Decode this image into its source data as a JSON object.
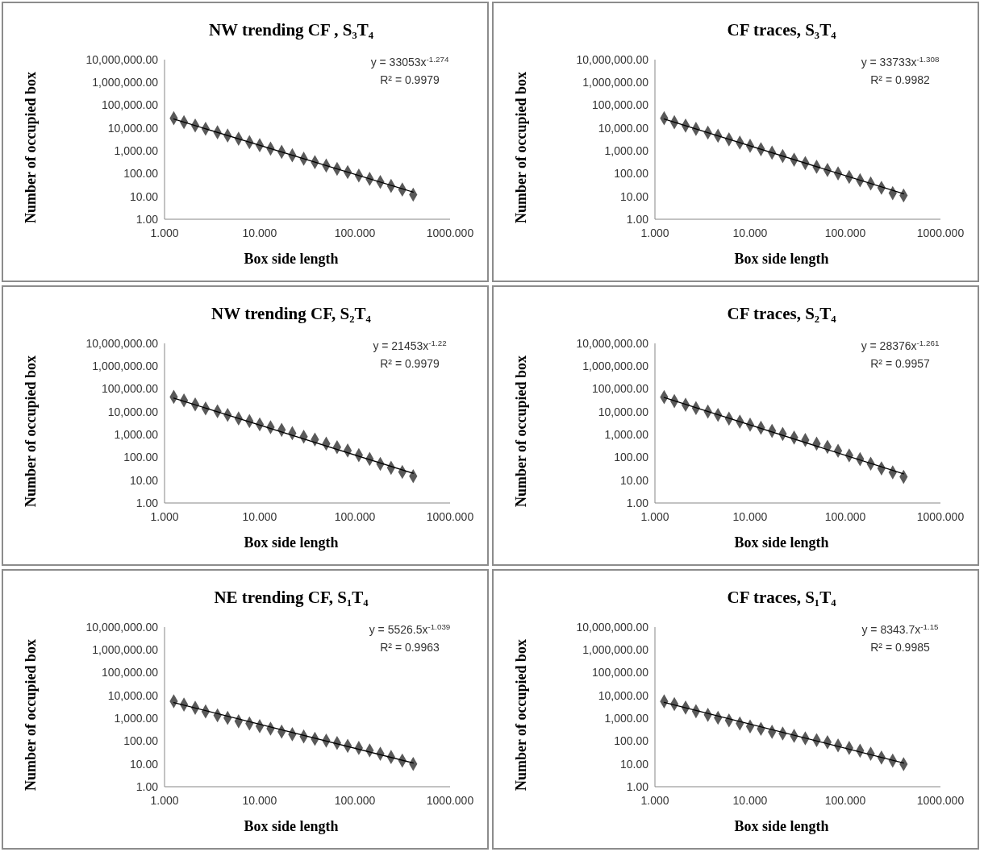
{
  "chart_data": [
    {
      "type": "scatter",
      "title": "NW trending CF , S₃T₄",
      "xlabel": "Box side length",
      "ylabel": "Number of occupied box",
      "log": "xy",
      "xlim": [
        1,
        1000
      ],
      "ylim": [
        1,
        10000000
      ],
      "xticks": [
        {
          "value": 1,
          "label": "1.000"
        },
        {
          "value": 10,
          "label": "10.000"
        },
        {
          "value": 100,
          "label": "100.000"
        },
        {
          "value": 1000,
          "label": "1000.000"
        }
      ],
      "yticks": [
        {
          "value": 1,
          "label": "1.00"
        },
        {
          "value": 10,
          "label": "10.00"
        },
        {
          "value": 100,
          "label": "100.00"
        },
        {
          "value": 1000,
          "label": "1,000.00"
        },
        {
          "value": 10000,
          "label": "10,000.00"
        },
        {
          "value": 100000,
          "label": "100,000.00"
        },
        {
          "value": 1000000,
          "label": "1,000,000.00"
        },
        {
          "value": 10000000,
          "label": "10,000,000.00"
        }
      ],
      "x": [
        1.25,
        1.6,
        2.1,
        2.7,
        3.6,
        4.6,
        6,
        7.8,
        10,
        13,
        17,
        22,
        29,
        38,
        50,
        65,
        84,
        110,
        143,
        185,
        240,
        315,
        410
      ],
      "series": [
        {
          "marker": "diamond",
          "color": "#595959",
          "values": [
            27000,
            18200,
            12900,
            9300,
            6500,
            4700,
            3400,
            2400,
            1760,
            1260,
            900,
            640,
            450,
            320,
            226,
            162,
            117,
            83,
            59,
            43,
            29,
            20,
            12
          ]
        },
        {
          "type": "line",
          "marker": "none",
          "color": "#000000",
          "values": [
            24800,
            null,
            null,
            null,
            null,
            null,
            null,
            null,
            null,
            null,
            null,
            null,
            null,
            null,
            null,
            null,
            null,
            null,
            null,
            null,
            null,
            null,
            15.5
          ]
        }
      ],
      "annotations": [
        "y = 33053x$^{-1.274}$",
        "R² = 0.9979"
      ]
    },
    {
      "type": "scatter",
      "title": "CF traces, S₃T₄",
      "xlabel": "Box side length",
      "ylabel": "Number of occupied box",
      "log": "xy",
      "xlim": [
        1,
        1000
      ],
      "ylim": [
        1,
        10000000
      ],
      "xticks": [
        {
          "value": 1,
          "label": "1.000"
        },
        {
          "value": 10,
          "label": "10.000"
        },
        {
          "value": 100,
          "label": "100.000"
        },
        {
          "value": 1000,
          "label": "1000.000"
        }
      ],
      "yticks": [
        {
          "value": 1,
          "label": "1.00"
        },
        {
          "value": 10,
          "label": "10.00"
        },
        {
          "value": 100,
          "label": "100.00"
        },
        {
          "value": 1000,
          "label": "1,000.00"
        },
        {
          "value": 10000,
          "label": "10,000.00"
        },
        {
          "value": 100000,
          "label": "100,000.00"
        },
        {
          "value": 1000000,
          "label": "1,000,000.00"
        },
        {
          "value": 10000000,
          "label": "10,000,000.00"
        }
      ],
      "x": [
        1.25,
        1.6,
        2.1,
        2.7,
        3.6,
        4.6,
        6,
        7.8,
        10,
        13,
        17,
        22,
        29,
        38,
        50,
        65,
        84,
        110,
        143,
        185,
        240,
        315,
        410
      ],
      "series": [
        {
          "marker": "diamond",
          "color": "#595959",
          "values": [
            27000,
            18000,
            12800,
            9200,
            6300,
            4600,
            3200,
            2300,
            1660,
            1180,
            830,
            590,
            410,
            290,
            200,
            144,
            103,
            72,
            51,
            37,
            24,
            14,
            11
          ]
        },
        {
          "type": "line",
          "marker": "none",
          "color": "#000000",
          "values": [
            25000,
            null,
            null,
            null,
            null,
            null,
            null,
            null,
            null,
            null,
            null,
            null,
            null,
            null,
            null,
            null,
            null,
            null,
            null,
            null,
            null,
            null,
            13
          ]
        }
      ],
      "annotations": [
        "y = 33733x$^{-1.308}$",
        "R² = 0.9982"
      ]
    },
    {
      "type": "scatter",
      "title": "NW trending CF, S₂T₄",
      "xlabel": "Box side length",
      "ylabel": "Number of occupied box",
      "log": "xy",
      "xlim": [
        1,
        1000
      ],
      "ylim": [
        1,
        10000000
      ],
      "xticks": [
        {
          "value": 1,
          "label": "1.000"
        },
        {
          "value": 10,
          "label": "10.000"
        },
        {
          "value": 100,
          "label": "100.000"
        },
        {
          "value": 1000,
          "label": "1000.000"
        }
      ],
      "yticks": [
        {
          "value": 1,
          "label": "1.00"
        },
        {
          "value": 10,
          "label": "10.00"
        },
        {
          "value": 100,
          "label": "100.00"
        },
        {
          "value": 1000,
          "label": "1,000.00"
        },
        {
          "value": 10000,
          "label": "10,000.00"
        },
        {
          "value": 100000,
          "label": "100,000.00"
        },
        {
          "value": 1000000,
          "label": "1,000,000.00"
        },
        {
          "value": 10000000,
          "label": "10,000,000.00"
        }
      ],
      "x": [
        1.25,
        1.6,
        2.1,
        2.7,
        3.6,
        4.6,
        6,
        7.8,
        10,
        13,
        17,
        22,
        29,
        38,
        50,
        65,
        84,
        110,
        143,
        185,
        240,
        315,
        410
      ],
      "series": [
        {
          "marker": "diamond",
          "color": "#595959",
          "values": [
            45000,
            31600,
            21000,
            14000,
            10500,
            7300,
            5100,
            3900,
            2800,
            2100,
            1600,
            1150,
            810,
            610,
            400,
            280,
            200,
            126,
            85,
            52,
            35,
            23,
            15
          ]
        },
        {
          "type": "line",
          "marker": "none",
          "color": "#000000",
          "values": [
            40000,
            null,
            null,
            null,
            null,
            null,
            null,
            null,
            null,
            null,
            null,
            null,
            null,
            null,
            null,
            null,
            null,
            null,
            null,
            null,
            null,
            null,
            20
          ]
        }
      ],
      "annotations": [
        "y = 21453x$^{-1.22}$",
        "R² = 0.9979"
      ]
    },
    {
      "type": "scatter",
      "title": "CF traces, S₂T₄",
      "xlabel": "Box side length",
      "ylabel": "Number of occupied box",
      "log": "xy",
      "xlim": [
        1,
        1000
      ],
      "ylim": [
        1,
        10000000
      ],
      "xticks": [
        {
          "value": 1,
          "label": "1.000"
        },
        {
          "value": 10,
          "label": "10.000"
        },
        {
          "value": 100,
          "label": "100.000"
        },
        {
          "value": 1000,
          "label": "1000.000"
        }
      ],
      "yticks": [
        {
          "value": 1,
          "label": "1.00"
        },
        {
          "value": 10,
          "label": "10.00"
        },
        {
          "value": 100,
          "label": "100.00"
        },
        {
          "value": 1000,
          "label": "1,000.00"
        },
        {
          "value": 10000,
          "label": "10,000.00"
        },
        {
          "value": 100000,
          "label": "100,000.00"
        },
        {
          "value": 1000000,
          "label": "1,000,000.00"
        },
        {
          "value": 10000000,
          "label": "10,000,000.00"
        }
      ],
      "x": [
        1.25,
        1.6,
        2.1,
        2.7,
        3.6,
        4.6,
        6,
        7.8,
        10,
        13,
        17,
        22,
        29,
        38,
        50,
        65,
        84,
        110,
        143,
        185,
        240,
        315,
        410
      ],
      "series": [
        {
          "marker": "diamond",
          "color": "#595959",
          "values": [
            44000,
            29500,
            20300,
            14500,
            10200,
            7300,
            5000,
            3700,
            2700,
            2000,
            1450,
            1070,
            740,
            575,
            400,
            290,
            195,
            122,
            84,
            53,
            33,
            22,
            14
          ]
        },
        {
          "type": "line",
          "marker": "none",
          "color": "#000000",
          "values": [
            42000,
            null,
            null,
            null,
            null,
            null,
            null,
            null,
            null,
            null,
            null,
            null,
            null,
            null,
            null,
            null,
            null,
            null,
            null,
            null,
            null,
            null,
            19
          ]
        }
      ],
      "annotations": [
        "y = 28376x$^{-1.261}$",
        "R² = 0.9957"
      ]
    },
    {
      "type": "scatter",
      "title": "NE trending CF, S₁T₄",
      "xlabel": "Box side length",
      "ylabel": "Number of occupied box",
      "log": "xy",
      "xlim": [
        1,
        1000
      ],
      "ylim": [
        1,
        10000000
      ],
      "xticks": [
        {
          "value": 1,
          "label": "1.000"
        },
        {
          "value": 10,
          "label": "10.000"
        },
        {
          "value": 100,
          "label": "100.000"
        },
        {
          "value": 1000,
          "label": "1000.000"
        }
      ],
      "yticks": [
        {
          "value": 1,
          "label": "1.00"
        },
        {
          "value": 10,
          "label": "10.00"
        },
        {
          "value": 100,
          "label": "100.00"
        },
        {
          "value": 1000,
          "label": "1,000.00"
        },
        {
          "value": 10000,
          "label": "10,000.00"
        },
        {
          "value": 100000,
          "label": "100,000.00"
        },
        {
          "value": 1000000,
          "label": "1,000,000.00"
        },
        {
          "value": 10000000,
          "label": "10,000,000.00"
        }
      ],
      "x": [
        1.25,
        1.6,
        2.1,
        2.7,
        3.6,
        4.6,
        6,
        7.8,
        10,
        13,
        17,
        22,
        29,
        38,
        50,
        65,
        84,
        110,
        143,
        185,
        240,
        315,
        410
      ],
      "series": [
        {
          "marker": "diamond",
          "color": "#595959",
          "values": [
            5600,
            4000,
            2900,
            2000,
            1350,
            1040,
            740,
            590,
            450,
            350,
            260,
            200,
            160,
            125,
            105,
            83,
            62,
            50,
            39,
            28,
            20,
            14,
            10
          ]
        },
        {
          "type": "line",
          "marker": "none",
          "color": "#000000",
          "values": [
            4900,
            null,
            null,
            null,
            null,
            null,
            null,
            null,
            null,
            null,
            null,
            null,
            null,
            null,
            null,
            null,
            null,
            null,
            null,
            null,
            null,
            null,
            11
          ]
        }
      ],
      "annotations": [
        "y = 5526.5x$^{-1.039}$",
        "R² = 0.9963"
      ]
    },
    {
      "type": "scatter",
      "title": "CF traces, S₁T₄",
      "xlabel": "Box side length",
      "ylabel": "Number of occupied box",
      "log": "xy",
      "xlim": [
        1,
        1000
      ],
      "ylim": [
        1,
        10000000
      ],
      "xticks": [
        {
          "value": 1,
          "label": "1.000"
        },
        {
          "value": 10,
          "label": "10.000"
        },
        {
          "value": 100,
          "label": "100.000"
        },
        {
          "value": 1000,
          "label": "1000.000"
        }
      ],
      "yticks": [
        {
          "value": 1,
          "label": "1.00"
        },
        {
          "value": 10,
          "label": "10.00"
        },
        {
          "value": 100,
          "label": "100.00"
        },
        {
          "value": 1000,
          "label": "1,000.00"
        },
        {
          "value": 10000,
          "label": "10,000.00"
        },
        {
          "value": 100000,
          "label": "100,000.00"
        },
        {
          "value": 1000000,
          "label": "1,000,000.00"
        },
        {
          "value": 10000000,
          "label": "10,000,000.00"
        }
      ],
      "x": [
        1.25,
        1.6,
        2.1,
        2.7,
        3.6,
        4.6,
        6,
        7.8,
        10,
        13,
        17,
        22,
        29,
        38,
        50,
        65,
        84,
        110,
        143,
        185,
        240,
        315,
        410
      ],
      "series": [
        {
          "marker": "diamond",
          "color": "#595959",
          "values": [
            5500,
            4200,
            2950,
            2050,
            1420,
            1050,
            810,
            590,
            440,
            345,
            255,
            215,
            170,
            132,
            110,
            89,
            65,
            50,
            38,
            28,
            19,
            14,
            9.8
          ]
        },
        {
          "type": "line",
          "marker": "none",
          "color": "#000000",
          "values": [
            5000,
            null,
            null,
            null,
            null,
            null,
            null,
            null,
            null,
            null,
            null,
            null,
            null,
            null,
            null,
            null,
            null,
            null,
            null,
            null,
            null,
            null,
            11
          ]
        }
      ],
      "annotations": [
        "y = 8343.7x$^{-1.15}$",
        "R² = 0.9985"
      ]
    }
  ]
}
